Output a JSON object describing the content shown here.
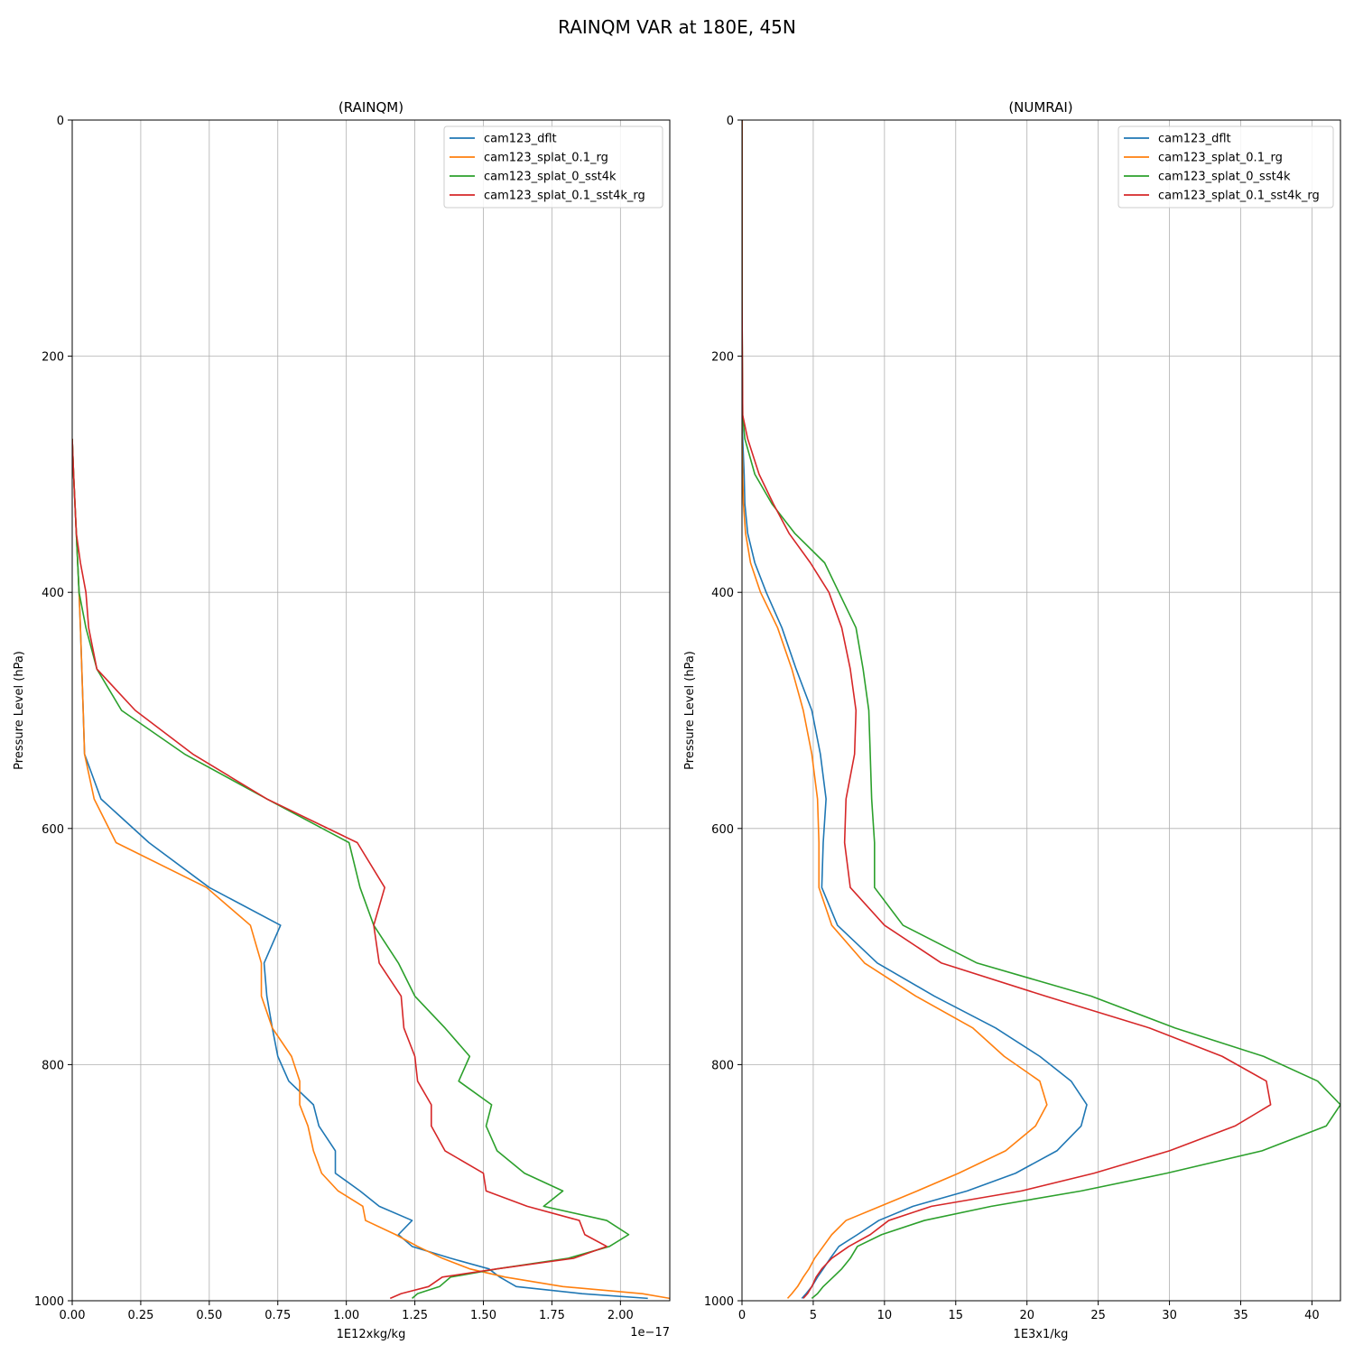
{
  "figure": {
    "title": "RAINQM VAR at 180E, 45N"
  },
  "chart_data": [
    {
      "type": "line",
      "title": "(RAINQM)",
      "xlabel": "1E12xkg/kg",
      "ylabel": "Pressure Level (hPa)",
      "x_offset_label": "1e−17",
      "xlim": [
        0,
        2.18
      ],
      "ylim": [
        1000,
        0
      ],
      "xticks": [
        0,
        0.25,
        0.5,
        0.75,
        1.0,
        1.25,
        1.5,
        1.75,
        2.0
      ],
      "xtick_labels": [
        "0.00",
        "0.25",
        "0.50",
        "0.75",
        "1.00",
        "1.25",
        "1.50",
        "1.75",
        "2.00"
      ],
      "yticks": [
        0,
        200,
        400,
        600,
        800,
        1000
      ],
      "ytick_labels": [
        "0",
        "200",
        "400",
        "600",
        "800",
        "1000"
      ],
      "grid": true,
      "legend_position": "top-right",
      "levels": [
        270,
        300,
        325,
        350,
        375,
        400,
        430,
        465,
        500,
        537,
        575,
        612,
        650,
        682,
        714,
        742,
        769,
        793,
        814,
        834,
        852,
        873,
        892,
        907,
        920,
        932,
        944,
        954,
        964,
        973,
        980,
        988,
        994,
        998
      ],
      "series": [
        {
          "name": "cam123_dflt",
          "color": "#1f77b4",
          "values": [
            0,
            0.005,
            0.01,
            0.015,
            0.02,
            0.025,
            0.03,
            0.035,
            0.04,
            0.045,
            0.105,
            0.28,
            0.5,
            0.76,
            0.7,
            0.71,
            0.73,
            0.75,
            0.79,
            0.88,
            0.9,
            0.96,
            0.96,
            1.05,
            1.12,
            1.24,
            1.19,
            1.24,
            1.38,
            1.52,
            1.56,
            1.62,
            1.86,
            2.1
          ]
        },
        {
          "name": "cam123_splat_0.1_rg",
          "color": "#ff7f0e",
          "values": [
            0,
            0.005,
            0.01,
            0.015,
            0.02,
            0.025,
            0.03,
            0.035,
            0.04,
            0.045,
            0.08,
            0.16,
            0.49,
            0.65,
            0.69,
            0.69,
            0.73,
            0.8,
            0.83,
            0.83,
            0.86,
            0.88,
            0.91,
            0.97,
            1.06,
            1.07,
            1.18,
            1.26,
            1.35,
            1.45,
            1.58,
            1.79,
            2.08,
            2.18
          ]
        },
        {
          "name": "cam123_splat_0_sst4k",
          "color": "#2ca02c",
          "values": [
            0,
            0.005,
            0.01,
            0.015,
            0.02,
            0.025,
            0.05,
            0.09,
            0.18,
            0.41,
            0.71,
            1.01,
            1.05,
            1.1,
            1.19,
            1.25,
            1.36,
            1.45,
            1.41,
            1.53,
            1.51,
            1.55,
            1.65,
            1.79,
            1.72,
            1.95,
            2.03,
            1.96,
            1.81,
            1.55,
            1.38,
            1.34,
            1.26,
            1.24
          ]
        },
        {
          "name": "cam123_splat_0.1_sst4k_rg",
          "color": "#d62728",
          "values": [
            0,
            0.005,
            0.01,
            0.015,
            0.03,
            0.05,
            0.06,
            0.09,
            0.23,
            0.44,
            0.71,
            1.04,
            1.14,
            1.1,
            1.12,
            1.2,
            1.21,
            1.25,
            1.26,
            1.31,
            1.31,
            1.36,
            1.5,
            1.51,
            1.66,
            1.85,
            1.87,
            1.95,
            1.83,
            1.55,
            1.35,
            1.3,
            1.2,
            1.16
          ]
        }
      ]
    },
    {
      "type": "line",
      "title": "(NUMRAI)",
      "xlabel": "1E3x1/kg",
      "ylabel": "Pressure Level (hPa)",
      "xlim": [
        0,
        42
      ],
      "ylim": [
        1000,
        0
      ],
      "xticks": [
        0,
        5,
        10,
        15,
        20,
        25,
        30,
        35,
        40
      ],
      "xtick_labels": [
        "0",
        "5",
        "10",
        "15",
        "20",
        "25",
        "30",
        "35",
        "40"
      ],
      "yticks": [
        0,
        200,
        400,
        600,
        800,
        1000
      ],
      "ytick_labels": [
        "0",
        "200",
        "400",
        "600",
        "800",
        "1000"
      ],
      "grid": true,
      "legend_position": "top-right",
      "levels": [
        0,
        150,
        250,
        270,
        300,
        325,
        350,
        375,
        400,
        430,
        465,
        500,
        537,
        575,
        612,
        650,
        682,
        714,
        742,
        769,
        793,
        814,
        834,
        852,
        873,
        892,
        907,
        920,
        932,
        944,
        954,
        964,
        973,
        980,
        988,
        994,
        998
      ],
      "series": [
        {
          "name": "cam123_dflt",
          "color": "#1f77b4",
          "values": [
            0,
            0,
            0,
            0.05,
            0.15,
            0.2,
            0.4,
            0.9,
            1.7,
            2.8,
            3.8,
            4.9,
            5.5,
            5.9,
            5.7,
            5.6,
            6.7,
            9.5,
            13.5,
            17.8,
            20.9,
            23.1,
            24.2,
            23.8,
            22.1,
            19.2,
            15.8,
            12.0,
            9.6,
            8.1,
            6.8,
            6.2,
            5.7,
            5.3,
            4.9,
            4.5,
            4.2
          ]
        },
        {
          "name": "cam123_splat_0.1_rg",
          "color": "#ff7f0e",
          "values": [
            0,
            0,
            0,
            0,
            0.05,
            0.1,
            0.25,
            0.6,
            1.3,
            2.5,
            3.5,
            4.3,
            4.9,
            5.3,
            5.4,
            5.4,
            6.3,
            8.6,
            12.2,
            16.2,
            18.4,
            20.9,
            21.4,
            20.6,
            18.5,
            15.2,
            12.3,
            9.7,
            7.3,
            6.3,
            5.7,
            5.1,
            4.7,
            4.3,
            3.9,
            3.5,
            3.2
          ]
        },
        {
          "name": "cam123_splat_0_sst4k",
          "color": "#2ca02c",
          "values": [
            0,
            0,
            0.05,
            0.2,
            0.9,
            2.1,
            3.7,
            5.8,
            6.8,
            8.0,
            8.5,
            8.9,
            9.0,
            9.1,
            9.3,
            9.3,
            11.3,
            16.5,
            24.5,
            30.4,
            36.6,
            40.4,
            42.0,
            41.0,
            36.5,
            29.8,
            23.8,
            17.5,
            12.8,
            9.8,
            8.1,
            7.6,
            7.0,
            6.4,
            5.7,
            5.3,
            4.9
          ]
        },
        {
          "name": "cam123_splat_0.1_sst4k_rg",
          "color": "#d62728",
          "values": [
            0,
            0,
            0.05,
            0.4,
            1.2,
            2.2,
            3.3,
            4.8,
            6.1,
            7.0,
            7.6,
            8.0,
            7.9,
            7.3,
            7.2,
            7.6,
            10.0,
            14.0,
            21.3,
            28.6,
            33.7,
            36.8,
            37.1,
            34.6,
            30.0,
            24.7,
            19.6,
            13.3,
            10.3,
            9.0,
            7.5,
            6.3,
            5.6,
            5.2,
            4.9,
            4.6,
            4.3
          ]
        }
      ]
    }
  ]
}
